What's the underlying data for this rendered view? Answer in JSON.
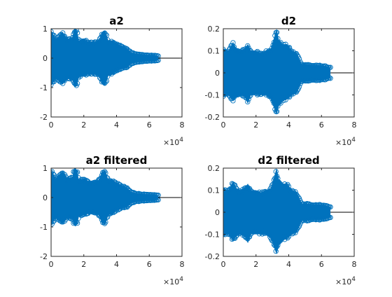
{
  "figure": {
    "background": "#ffffff",
    "axes_color": "#262626",
    "series_color": "#0072bd",
    "marker": "circle"
  },
  "chart_data": [
    {
      "type": "scatter",
      "title": "a2",
      "xlim": [
        0,
        8
      ],
      "ylim": [
        -2,
        1
      ],
      "xticks": [
        0,
        2,
        4,
        6,
        8
      ],
      "yticks": [
        -2,
        -1,
        0,
        1
      ],
      "x_multiplier": "10",
      "x_multiplier_exponent": "4",
      "series": [
        {
          "envelope_x": [
            0.0,
            0.3,
            0.7,
            1.0,
            1.3,
            1.4,
            1.5,
            1.6,
            1.7,
            2.0,
            2.3,
            2.6,
            2.9,
            3.1,
            3.3,
            3.5,
            3.8,
            4.0,
            4.2,
            4.4,
            4.6,
            4.9,
            5.2,
            5.6,
            6.0,
            6.3,
            6.55
          ],
          "envelope_upper": [
            0.95,
            0.65,
            0.9,
            0.65,
            0.7,
            0.98,
            1.0,
            0.9,
            0.6,
            0.65,
            0.55,
            0.55,
            0.6,
            0.85,
            0.95,
            0.6,
            0.6,
            0.5,
            0.45,
            0.4,
            0.35,
            0.2,
            0.15,
            0.12,
            0.1,
            0.1,
            0.08
          ],
          "envelope_lower": [
            -0.95,
            -0.7,
            -0.9,
            -0.7,
            -0.75,
            -0.95,
            -0.98,
            -0.9,
            -0.65,
            -0.6,
            -0.55,
            -0.55,
            -0.6,
            -0.85,
            -0.95,
            -0.6,
            -0.55,
            -0.45,
            -0.4,
            -0.35,
            -0.35,
            -0.2,
            -0.15,
            -0.12,
            -0.1,
            -0.1,
            -0.08
          ],
          "tail_x": [
            6.55,
            8.0
          ],
          "tail_y": 0.0
        }
      ]
    },
    {
      "type": "scatter",
      "title": "d2",
      "xlim": [
        0,
        8
      ],
      "ylim": [
        -0.2,
        0.2
      ],
      "xticks": [
        0,
        2,
        4,
        6,
        8
      ],
      "yticks": [
        -0.2,
        -0.1,
        0,
        0.1,
        0.2
      ],
      "x_multiplier": "10",
      "x_multiplier_exponent": "4",
      "series": [
        {
          "envelope_x": [
            0.0,
            0.3,
            0.6,
            0.8,
            1.0,
            1.3,
            1.5,
            1.7,
            2.0,
            2.3,
            2.6,
            2.9,
            3.1,
            3.25,
            3.4,
            3.6,
            3.9,
            4.2,
            4.5,
            4.8,
            5.1,
            5.5,
            6.0,
            6.3,
            6.55
          ],
          "envelope_upper": [
            0.11,
            0.1,
            0.14,
            0.11,
            0.1,
            0.11,
            0.13,
            0.1,
            0.1,
            0.09,
            0.1,
            0.11,
            0.16,
            0.2,
            0.15,
            0.13,
            0.13,
            0.1,
            0.09,
            0.04,
            0.04,
            0.035,
            0.035,
            0.03,
            0.025
          ],
          "envelope_lower": [
            -0.11,
            -0.1,
            -0.13,
            -0.11,
            -0.1,
            -0.11,
            -0.14,
            -0.1,
            -0.1,
            -0.1,
            -0.1,
            -0.12,
            -0.16,
            -0.19,
            -0.15,
            -0.13,
            -0.12,
            -0.1,
            -0.09,
            -0.04,
            -0.04,
            -0.035,
            -0.035,
            -0.03,
            -0.025
          ],
          "tail_x": [
            6.55,
            8.0
          ],
          "tail_y": 0.0
        }
      ]
    },
    {
      "type": "scatter",
      "title": "a2 filtered",
      "xlim": [
        0,
        8
      ],
      "ylim": [
        -2,
        1
      ],
      "xticks": [
        0,
        2,
        4,
        6,
        8
      ],
      "yticks": [
        -2,
        -1,
        0,
        1
      ],
      "x_multiplier": "10",
      "x_multiplier_exponent": "4",
      "series": [
        {
          "envelope_x": [
            0.0,
            0.3,
            0.7,
            1.0,
            1.3,
            1.4,
            1.5,
            1.6,
            1.7,
            2.0,
            2.3,
            2.6,
            2.9,
            3.1,
            3.3,
            3.5,
            3.8,
            4.0,
            4.2,
            4.4,
            4.6,
            4.9,
            5.2,
            5.6,
            6.0,
            6.3,
            6.55
          ],
          "envelope_upper": [
            0.95,
            0.65,
            0.9,
            0.65,
            0.7,
            0.98,
            1.0,
            0.9,
            0.6,
            0.65,
            0.55,
            0.55,
            0.6,
            0.85,
            0.95,
            0.6,
            0.6,
            0.5,
            0.45,
            0.4,
            0.35,
            0.2,
            0.15,
            0.12,
            0.1,
            0.1,
            0.08
          ],
          "envelope_lower": [
            -0.95,
            -0.7,
            -0.9,
            -0.7,
            -0.75,
            -0.95,
            -0.98,
            -0.9,
            -0.65,
            -0.6,
            -0.55,
            -0.55,
            -0.6,
            -0.85,
            -0.95,
            -0.6,
            -0.55,
            -0.45,
            -0.4,
            -0.35,
            -0.35,
            -0.2,
            -0.15,
            -0.12,
            -0.1,
            -0.1,
            -0.08
          ],
          "tail_x": [
            6.55,
            8.0
          ],
          "tail_y": 0.0
        }
      ]
    },
    {
      "type": "scatter",
      "title": "d2 filtered",
      "xlim": [
        0,
        8
      ],
      "ylim": [
        -0.2,
        0.2
      ],
      "xticks": [
        0,
        2,
        4,
        6,
        8
      ],
      "yticks": [
        -0.2,
        -0.1,
        0,
        0.1,
        0.2
      ],
      "x_multiplier": "10",
      "x_multiplier_exponent": "4",
      "series": [
        {
          "envelope_x": [
            0.0,
            0.3,
            0.6,
            0.8,
            1.0,
            1.3,
            1.5,
            1.7,
            2.0,
            2.3,
            2.6,
            2.9,
            3.1,
            3.25,
            3.4,
            3.6,
            3.9,
            4.2,
            4.5,
            4.8,
            5.1,
            5.5,
            6.0,
            6.3,
            6.55
          ],
          "envelope_upper": [
            0.11,
            0.1,
            0.14,
            0.11,
            0.1,
            0.11,
            0.13,
            0.1,
            0.1,
            0.09,
            0.1,
            0.11,
            0.16,
            0.2,
            0.15,
            0.13,
            0.13,
            0.1,
            0.09,
            0.04,
            0.04,
            0.035,
            0.035,
            0.03,
            0.025
          ],
          "envelope_lower": [
            -0.11,
            -0.1,
            -0.13,
            -0.11,
            -0.1,
            -0.11,
            -0.14,
            -0.1,
            -0.1,
            -0.1,
            -0.1,
            -0.12,
            -0.16,
            -0.19,
            -0.15,
            -0.13,
            -0.12,
            -0.1,
            -0.09,
            -0.04,
            -0.04,
            -0.035,
            -0.035,
            -0.03,
            -0.025
          ],
          "tail_x": [
            6.55,
            8.0
          ],
          "tail_y": 0.0
        }
      ]
    }
  ]
}
